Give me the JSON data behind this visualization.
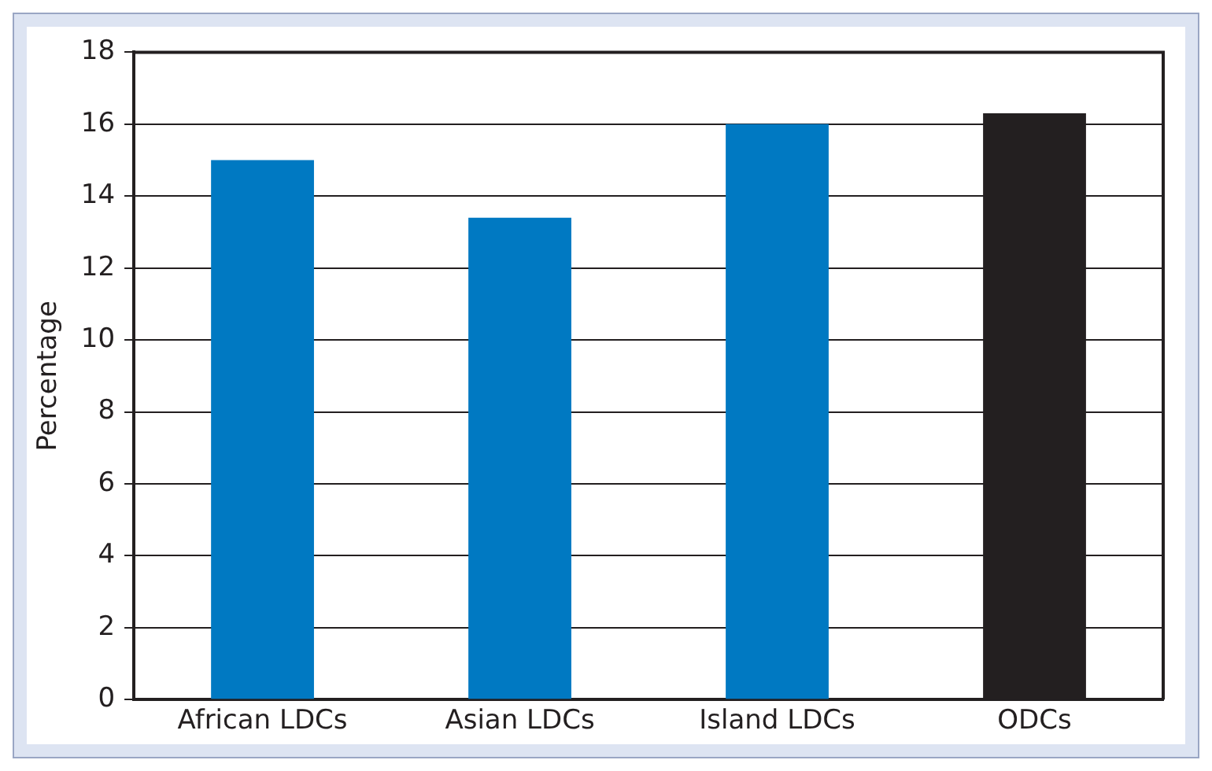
{
  "chart_data": {
    "type": "bar",
    "ylabel": "Percentage",
    "categories": [
      "African LDCs",
      "Asian LDCs",
      "Island LDCs",
      "ODCs"
    ],
    "values": [
      15.0,
      13.4,
      16.0,
      16.3
    ],
    "colors": [
      "#0079c2",
      "#0079c2",
      "#0079c2",
      "#231f20"
    ],
    "ylim": [
      0,
      18
    ],
    "yticks": [
      0,
      2,
      4,
      6,
      8,
      10,
      12,
      14,
      16,
      18
    ],
    "grid": "y",
    "legend": false
  }
}
